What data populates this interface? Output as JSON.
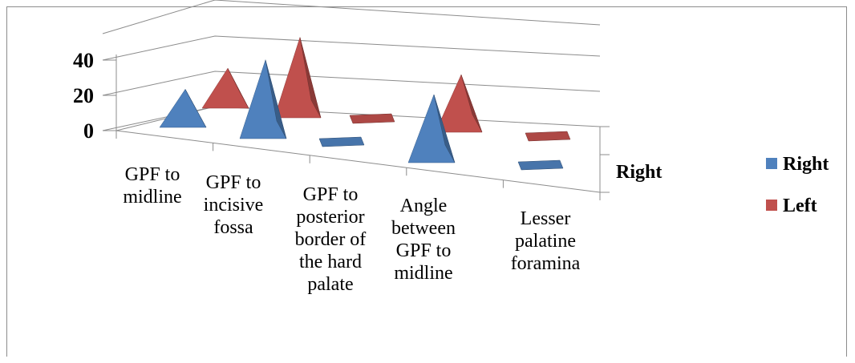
{
  "chart_data": {
    "type": "bar",
    "style": "3d-pyramid",
    "categories": [
      [
        "GPF to",
        "midline"
      ],
      [
        "GPF to",
        "incisive",
        "fossa"
      ],
      [
        "GPF to",
        "posterior",
        "border of",
        "the hard",
        "palate"
      ],
      [
        "Angle",
        "between",
        "GPF to",
        "midline"
      ],
      [
        "Lesser",
        "palatine",
        "foramina"
      ]
    ],
    "series": [
      {
        "name": "Right",
        "color": "#4F81BD",
        "values": [
          13,
          36,
          2,
          30,
          1
        ]
      },
      {
        "name": "Left",
        "color": "#C0504D",
        "values": [
          14,
          37,
          2,
          24,
          1
        ]
      }
    ],
    "yticks": [
      "0",
      "20",
      "40"
    ],
    "ylim": [
      0,
      40
    ],
    "depth_axis_label": "Right",
    "legend_position": "right",
    "grid": true
  }
}
